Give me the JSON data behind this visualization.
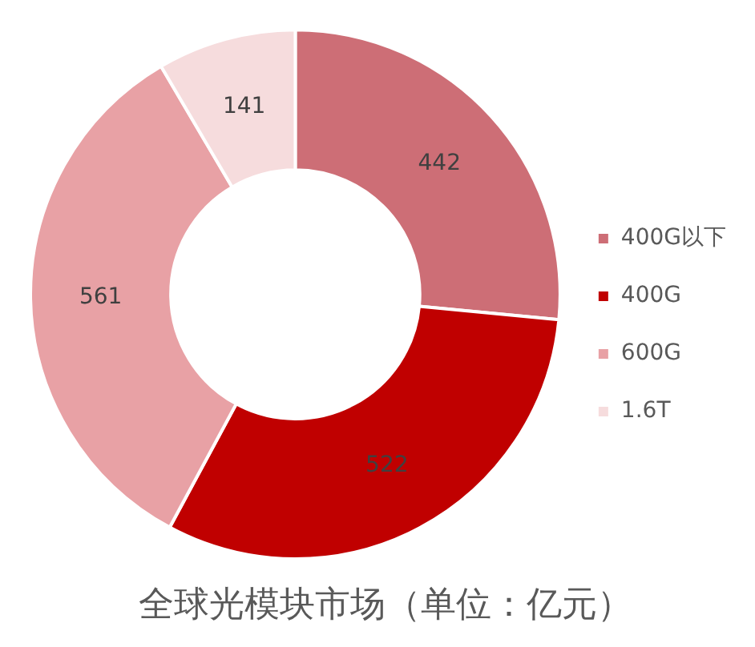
{
  "chart_data": {
    "type": "donut",
    "title": "全球光模块市场（单位：亿元）",
    "categories": [
      "400G以下",
      "400G",
      "600G",
      "1.6T"
    ],
    "values": [
      442,
      522,
      561,
      141
    ],
    "colors": [
      "#cd6e76",
      "#c00000",
      "#e8a1a5",
      "#f6dcdd"
    ],
    "data_labels": true,
    "legend": "right"
  }
}
